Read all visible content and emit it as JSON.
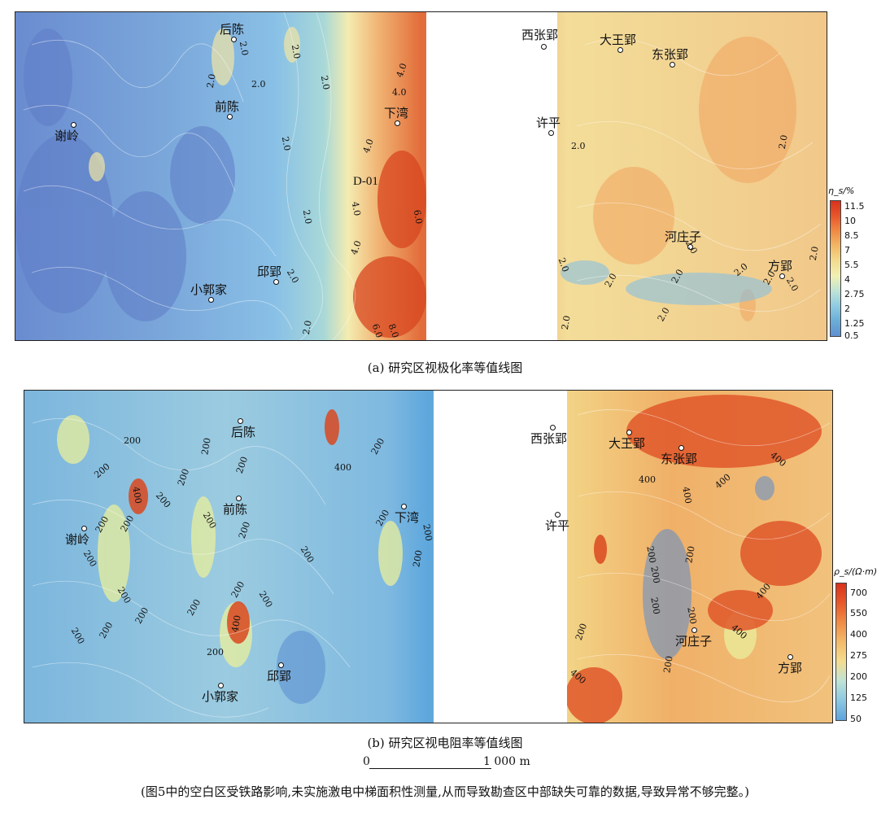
{
  "panel_a": {
    "caption": "(a) 研究区视极化率等值线图",
    "legend_title": "η_s/%",
    "legend_ticks": [
      "11.5",
      "10",
      "8.5",
      "7",
      "5.5",
      "4",
      "2.75",
      "2",
      "1.25",
      "0.5"
    ],
    "places": [
      "后陈",
      "前陈",
      "谢岭",
      "小郭家",
      "邱郢",
      "下湾",
      "D-01",
      "西张郢",
      "大王郢",
      "东张郢",
      "许平",
      "河庄子",
      "方郢"
    ],
    "contour_labels": [
      "2.0",
      "2.0",
      "2.0",
      "2.0",
      "2.0",
      "4.0",
      "4.0",
      "4.0",
      "4.0",
      "6.0",
      "2.0",
      "2.0",
      "4.0",
      "6.0",
      "8.0",
      "2.0",
      "2.0",
      "2.0",
      "2.0",
      "2.0",
      "2.0",
      "2.0",
      "2.0",
      "2.0",
      "2.0",
      "2.0",
      "2.0",
      "2.0",
      "2.0"
    ]
  },
  "panel_b": {
    "caption": "(b) 研究区视电阻率等值线图",
    "legend_title": "ρ_s/(Ω·m)",
    "legend_ticks": [
      "700",
      "550",
      "400",
      "275",
      "200",
      "125",
      "50"
    ],
    "places": [
      "后陈",
      "前陈",
      "谢岭",
      "小郭家",
      "邱郢",
      "下湾",
      "西张郢",
      "大王郢",
      "东张郢",
      "许平",
      "河庄子",
      "方郢"
    ],
    "contour_labels": [
      "200",
      "200",
      "400",
      "200",
      "200",
      "200",
      "200",
      "200",
      "200",
      "200",
      "200",
      "200",
      "200",
      "200",
      "200",
      "200",
      "400",
      "200",
      "200",
      "200",
      "200",
      "200",
      "200",
      "200",
      "400",
      "200",
      "200",
      "400",
      "400",
      "400",
      "200",
      "200",
      "200",
      "200",
      "200",
      "200",
      "400",
      "400",
      "400",
      "400",
      "200"
    ]
  },
  "scale_bar": {
    "start": "0",
    "end": "1 000 m"
  },
  "note": "(图5中的空白区受铁路影响,未实施激电中梯面积性测量,从而导致勘查区中部缺失可靠的数据,导致异常不够完整。)",
  "colors": {
    "low": "#4f6fbf",
    "mid": "#f2ed9a",
    "high": "#d43d1f",
    "gap": "#ffffff"
  }
}
